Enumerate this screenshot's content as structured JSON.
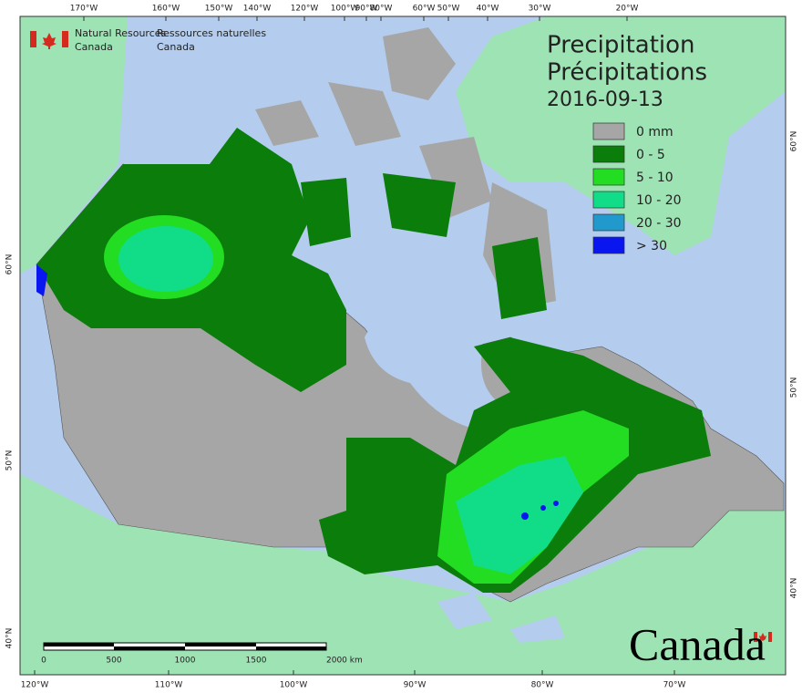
{
  "header": {
    "agency_en": [
      "Natural Resources",
      "Canada"
    ],
    "agency_fr": [
      "Ressources naturelles",
      "Canada"
    ]
  },
  "title": {
    "en": "Precipitation",
    "fr": "Précipitations",
    "date": "2016-09-13"
  },
  "legend": [
    {
      "label": "0 mm",
      "color": "#a6a6a6"
    },
    {
      "label": "0 - 5",
      "color": "#0a7d0a"
    },
    {
      "label": "5 - 10",
      "color": "#22dd22"
    },
    {
      "label": "10 - 20",
      "color": "#11dd88"
    },
    {
      "label": "20 - 30",
      "color": "#2299cc"
    },
    {
      "label": "> 30",
      "color": "#0a16f0"
    }
  ],
  "graticule": {
    "top": [
      "170°W",
      "160°W",
      "150°W",
      "140°W",
      "120°W",
      "100°W",
      "90°W",
      "80°W",
      "60°W",
      "50°W",
      "40°W",
      "30°W",
      "20°W"
    ],
    "bottom": [
      "120°W",
      "110°W",
      "100°W",
      "90°W",
      "80°W",
      "70°W"
    ],
    "left": [
      "60°N",
      "50°N",
      "40°N"
    ],
    "right": [
      "60°N",
      "50°N",
      "40°N"
    ]
  },
  "scale_bar": {
    "labels": [
      "0",
      "500",
      "1000",
      "1500",
      "2000 km"
    ]
  },
  "wordmark": "Canada"
}
